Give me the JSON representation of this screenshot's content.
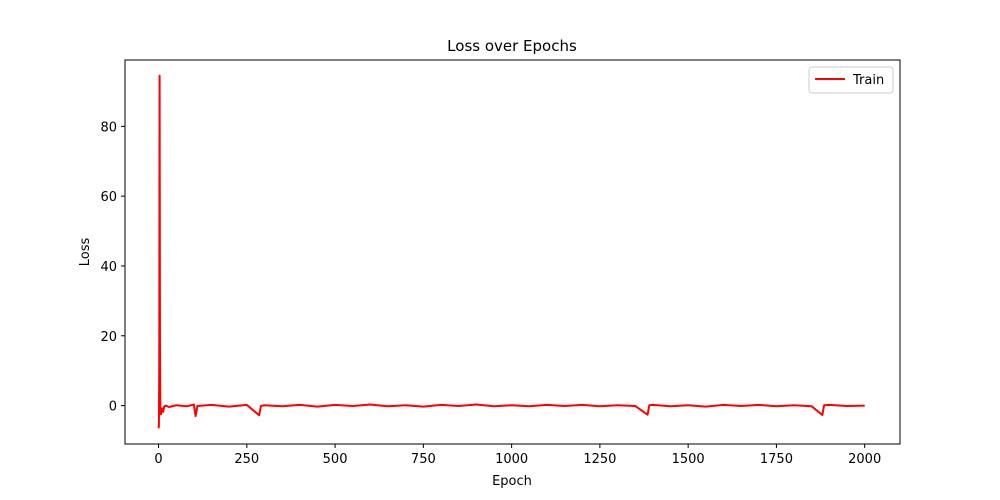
{
  "chart_data": {
    "type": "line",
    "title": "Loss over Epochs",
    "xlabel": "Epoch",
    "ylabel": "Loss",
    "xlim": [
      -95,
      2100
    ],
    "ylim": [
      -11,
      99
    ],
    "xticks": [
      0,
      250,
      500,
      750,
      1000,
      1250,
      1500,
      1750,
      2000
    ],
    "yticks": [
      0,
      20,
      40,
      60,
      80
    ],
    "grid": false,
    "legend": {
      "placement": "top-right"
    },
    "series": [
      {
        "name": "Train",
        "color": "#ff0000",
        "points": [
          [
            0,
            -6.5
          ],
          [
            1,
            -5.8
          ],
          [
            2,
            12.0
          ],
          [
            3,
            94.5
          ],
          [
            4,
            20.0
          ],
          [
            5,
            -1.5
          ],
          [
            7,
            -2.5
          ],
          [
            10,
            -0.8
          ],
          [
            13,
            -1.8
          ],
          [
            16,
            -0.3
          ],
          [
            20,
            0.0
          ],
          [
            30,
            -0.4
          ],
          [
            50,
            0.1
          ],
          [
            80,
            -0.2
          ],
          [
            100,
            0.3
          ],
          [
            105,
            -3.0
          ],
          [
            110,
            -0.1
          ],
          [
            150,
            0.2
          ],
          [
            200,
            -0.3
          ],
          [
            250,
            0.2
          ],
          [
            285,
            -2.8
          ],
          [
            290,
            -0.1
          ],
          [
            300,
            0.1
          ],
          [
            350,
            -0.2
          ],
          [
            400,
            0.2
          ],
          [
            450,
            -0.3
          ],
          [
            500,
            0.2
          ],
          [
            550,
            -0.1
          ],
          [
            600,
            0.3
          ],
          [
            650,
            -0.2
          ],
          [
            700,
            0.1
          ],
          [
            750,
            -0.3
          ],
          [
            800,
            0.2
          ],
          [
            850,
            -0.1
          ],
          [
            900,
            0.3
          ],
          [
            950,
            -0.2
          ],
          [
            1000,
            0.1
          ],
          [
            1050,
            -0.2
          ],
          [
            1100,
            0.2
          ],
          [
            1150,
            -0.1
          ],
          [
            1200,
            0.2
          ],
          [
            1250,
            -0.2
          ],
          [
            1300,
            0.1
          ],
          [
            1350,
            -0.1
          ],
          [
            1385,
            -2.6
          ],
          [
            1390,
            0.1
          ],
          [
            1400,
            0.2
          ],
          [
            1450,
            -0.2
          ],
          [
            1500,
            0.1
          ],
          [
            1550,
            -0.3
          ],
          [
            1600,
            0.2
          ],
          [
            1650,
            -0.1
          ],
          [
            1700,
            0.2
          ],
          [
            1750,
            -0.2
          ],
          [
            1800,
            0.1
          ],
          [
            1850,
            -0.2
          ],
          [
            1880,
            -2.7
          ],
          [
            1885,
            0.1
          ],
          [
            1900,
            0.2
          ],
          [
            1950,
            -0.1
          ],
          [
            2000,
            0.0
          ]
        ]
      }
    ]
  }
}
